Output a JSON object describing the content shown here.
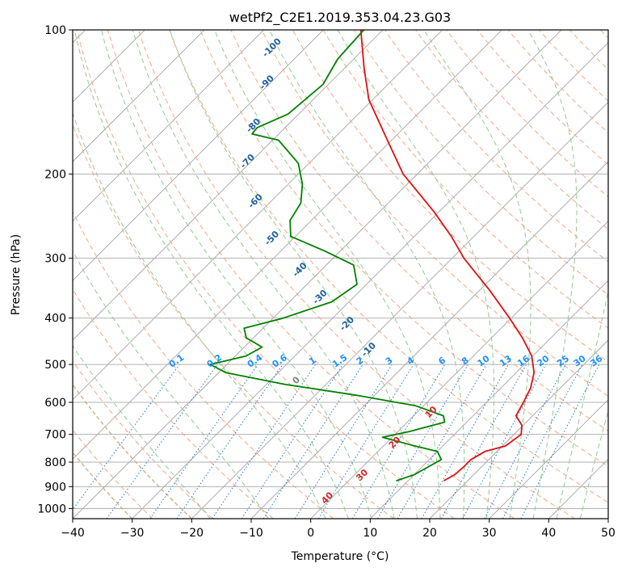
{
  "chart_data": {
    "type": "line",
    "title": "wetPf2_C2E1.2019.353.04.23.G03",
    "xlabel": "Temperature (°C)",
    "ylabel": "Pressure (hPa)",
    "xlim": [
      -40,
      50
    ],
    "ylim": [
      1050,
      100
    ],
    "y_scale": "log",
    "skew": "45deg",
    "grid": true,
    "x_ticks": [
      -40,
      -30,
      -20,
      -10,
      0,
      10,
      20,
      30,
      40,
      50
    ],
    "y_ticks": [
      100,
      200,
      300,
      400,
      500,
      600,
      700,
      800,
      900,
      1000
    ],
    "series": [
      {
        "color": "#e01010",
        "points": [
          {
            "p": 875,
            "t": 16.0
          },
          {
            "p": 850,
            "t": 16.8
          },
          {
            "p": 820,
            "t": 17.0
          },
          {
            "p": 790,
            "t": 17.0
          },
          {
            "p": 760,
            "t": 18.0
          },
          {
            "p": 740,
            "t": 20.5
          },
          {
            "p": 700,
            "t": 21.2
          },
          {
            "p": 670,
            "t": 19.8
          },
          {
            "p": 640,
            "t": 17.2
          },
          {
            "p": 600,
            "t": 16.2
          },
          {
            "p": 560,
            "t": 15.0
          },
          {
            "p": 520,
            "t": 13.0
          },
          {
            "p": 480,
            "t": 9.8
          },
          {
            "p": 440,
            "t": 5.2
          },
          {
            "p": 400,
            "t": -0.3
          },
          {
            "p": 350,
            "t": -8.3
          },
          {
            "p": 300,
            "t": -18.0
          },
          {
            "p": 270,
            "t": -23.8
          },
          {
            "p": 240,
            "t": -30.8
          },
          {
            "p": 200,
            "t": -42.4
          },
          {
            "p": 170,
            "t": -50.7
          },
          {
            "p": 140,
            "t": -60.6
          },
          {
            "p": 120,
            "t": -66.8
          },
          {
            "p": 100,
            "t": -73.7
          }
        ]
      },
      {
        "color": "#008000",
        "points": [
          {
            "p": 875,
            "t": 8.0
          },
          {
            "p": 850,
            "t": 10.0
          },
          {
            "p": 820,
            "t": 11.0
          },
          {
            "p": 790,
            "t": 12.0
          },
          {
            "p": 760,
            "t": 10.0
          },
          {
            "p": 740,
            "t": 5.3
          },
          {
            "p": 710,
            "t": -1.6
          },
          {
            "p": 690,
            "t": 2.0
          },
          {
            "p": 660,
            "t": 6.3
          },
          {
            "p": 640,
            "t": 5.0
          },
          {
            "p": 610,
            "t": -1.3
          },
          {
            "p": 580,
            "t": -13.0
          },
          {
            "p": 550,
            "t": -27.0
          },
          {
            "p": 520,
            "t": -38.8
          },
          {
            "p": 500,
            "t": -42.8
          },
          {
            "p": 480,
            "t": -38.2
          },
          {
            "p": 460,
            "t": -37.0
          },
          {
            "p": 440,
            "t": -41.2
          },
          {
            "p": 420,
            "t": -43.2
          },
          {
            "p": 400,
            "t": -38.3
          },
          {
            "p": 370,
            "t": -32.9
          },
          {
            "p": 340,
            "t": -31.6
          },
          {
            "p": 310,
            "t": -35.4
          },
          {
            "p": 290,
            "t": -42.5
          },
          {
            "p": 270,
            "t": -50.8
          },
          {
            "p": 250,
            "t": -53.6
          },
          {
            "p": 230,
            "t": -54.7
          },
          {
            "p": 210,
            "t": -57.6
          },
          {
            "p": 190,
            "t": -61.8
          },
          {
            "p": 170,
            "t": -69.0
          },
          {
            "p": 165,
            "t": -74.5
          },
          {
            "p": 160,
            "t": -74.7
          },
          {
            "p": 150,
            "t": -71.8
          },
          {
            "p": 130,
            "t": -70.9
          },
          {
            "p": 115,
            "t": -72.7
          },
          {
            "p": 100,
            "t": -73.2
          }
        ]
      }
    ],
    "dry_adiabat_labels": [
      "-100",
      "-90",
      "-80",
      "-70",
      "-60",
      "-50",
      "-40",
      "-30",
      "-20",
      "-10",
      "0",
      "10",
      "20",
      "30",
      "40"
    ],
    "mixing_ratio_labels": [
      "0.1",
      "0.2",
      "0.4",
      "0.6",
      "1",
      "1.5",
      "2",
      "3",
      "4",
      "6",
      "8",
      "10",
      "13",
      "16",
      "20",
      "25",
      "30",
      "36"
    ]
  },
  "styles": {
    "grid_color": "#b0b0b0",
    "dry_adiabat_color": "#f4a582",
    "moist_adiabat_color": "#8fc98f",
    "mixing_ratio_color": "#1e78d2",
    "isotherm_color": "#9a9a9a",
    "theta_e_color": "#d2b48c"
  }
}
